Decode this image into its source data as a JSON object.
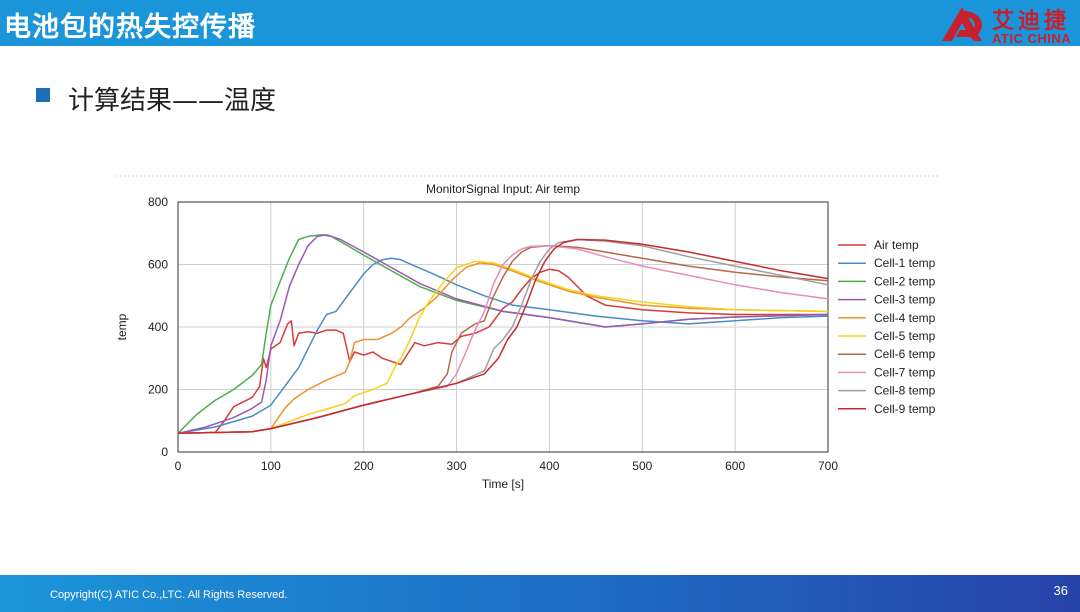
{
  "header": {
    "title": "电池包的热失控传播"
  },
  "logo": {
    "cn": "艾迪捷",
    "en": "ATIC CHINA",
    "brand_color": "#c8202e"
  },
  "bullet": {
    "text": "计算结果——温度"
  },
  "footer": {
    "copyright": "Copyright(C) ATIC Co.,LTC. All Rights Reserved.",
    "page": "36"
  },
  "chart_data": {
    "type": "line",
    "title": "MonitorSignal Input: Air temp",
    "xlabel": "Time [s]",
    "ylabel": "temp",
    "xlim": [
      0,
      700
    ],
    "ylim": [
      0,
      800
    ],
    "xticks": [
      0,
      100,
      200,
      300,
      400,
      500,
      600,
      700
    ],
    "yticks": [
      0,
      200,
      400,
      600,
      800
    ],
    "grid": true,
    "legend": "right",
    "series": [
      {
        "name": "Air temp",
        "color": "#d93a3a",
        "points": [
          [
            0,
            60
          ],
          [
            40,
            62
          ],
          [
            50,
            100
          ],
          [
            60,
            145
          ],
          [
            80,
            175
          ],
          [
            88,
            210
          ],
          [
            92,
            300
          ],
          [
            95,
            270
          ],
          [
            100,
            330
          ],
          [
            110,
            350
          ],
          [
            118,
            410
          ],
          [
            122,
            420
          ],
          [
            125,
            340
          ],
          [
            130,
            380
          ],
          [
            140,
            385
          ],
          [
            150,
            380
          ],
          [
            160,
            390
          ],
          [
            170,
            390
          ],
          [
            178,
            380
          ],
          [
            185,
            290
          ],
          [
            190,
            320
          ],
          [
            200,
            310
          ],
          [
            210,
            320
          ],
          [
            220,
            300
          ],
          [
            230,
            290
          ],
          [
            240,
            280
          ],
          [
            255,
            350
          ],
          [
            265,
            340
          ],
          [
            280,
            350
          ],
          [
            295,
            345
          ],
          [
            305,
            370
          ],
          [
            320,
            380
          ],
          [
            335,
            400
          ],
          [
            350,
            460
          ],
          [
            360,
            480
          ],
          [
            370,
            520
          ],
          [
            380,
            555
          ],
          [
            390,
            575
          ],
          [
            400,
            585
          ],
          [
            410,
            580
          ],
          [
            420,
            560
          ],
          [
            440,
            500
          ],
          [
            460,
            470
          ],
          [
            500,
            455
          ],
          [
            550,
            445
          ],
          [
            600,
            440
          ],
          [
            700,
            440
          ]
        ]
      },
      {
        "name": "Cell-1 temp",
        "color": "#4a8ac6",
        "points": [
          [
            0,
            60
          ],
          [
            40,
            80
          ],
          [
            80,
            115
          ],
          [
            100,
            150
          ],
          [
            120,
            230
          ],
          [
            130,
            270
          ],
          [
            140,
            330
          ],
          [
            150,
            390
          ],
          [
            160,
            440
          ],
          [
            170,
            450
          ],
          [
            180,
            490
          ],
          [
            190,
            530
          ],
          [
            200,
            570
          ],
          [
            210,
            600
          ],
          [
            220,
            615
          ],
          [
            230,
            620
          ],
          [
            240,
            615
          ],
          [
            255,
            595
          ],
          [
            275,
            570
          ],
          [
            300,
            535
          ],
          [
            330,
            500
          ],
          [
            360,
            470
          ],
          [
            400,
            455
          ],
          [
            450,
            435
          ],
          [
            500,
            420
          ],
          [
            550,
            410
          ],
          [
            600,
            420
          ],
          [
            650,
            430
          ],
          [
            700,
            435
          ]
        ]
      },
      {
        "name": "Cell-2 temp",
        "color": "#4caf50",
        "points": [
          [
            0,
            60
          ],
          [
            20,
            120
          ],
          [
            40,
            165
          ],
          [
            60,
            200
          ],
          [
            80,
            245
          ],
          [
            90,
            280
          ],
          [
            95,
            380
          ],
          [
            100,
            470
          ],
          [
            110,
            545
          ],
          [
            120,
            620
          ],
          [
            130,
            680
          ],
          [
            140,
            690
          ],
          [
            155,
            695
          ],
          [
            165,
            690
          ],
          [
            180,
            665
          ],
          [
            200,
            630
          ],
          [
            230,
            580
          ],
          [
            260,
            530
          ],
          [
            300,
            485
          ],
          [
            350,
            450
          ],
          [
            400,
            430
          ],
          [
            450,
            405
          ],
          [
            460,
            400
          ],
          [
            500,
            410
          ],
          [
            550,
            425
          ],
          [
            600,
            432
          ],
          [
            700,
            440
          ]
        ]
      },
      {
        "name": "Cell-3 temp",
        "color": "#9b59b6",
        "points": [
          [
            0,
            60
          ],
          [
            30,
            80
          ],
          [
            60,
            110
          ],
          [
            80,
            140
          ],
          [
            90,
            160
          ],
          [
            95,
            230
          ],
          [
            100,
            340
          ],
          [
            110,
            420
          ],
          [
            120,
            530
          ],
          [
            130,
            600
          ],
          [
            140,
            660
          ],
          [
            150,
            690
          ],
          [
            160,
            695
          ],
          [
            175,
            680
          ],
          [
            200,
            640
          ],
          [
            230,
            590
          ],
          [
            260,
            540
          ],
          [
            300,
            490
          ],
          [
            350,
            450
          ],
          [
            400,
            430
          ],
          [
            450,
            405
          ],
          [
            460,
            400
          ],
          [
            500,
            410
          ],
          [
            550,
            425
          ],
          [
            600,
            432
          ],
          [
            700,
            440
          ]
        ]
      },
      {
        "name": "Cell-4 temp",
        "color": "#f0922b",
        "points": [
          [
            0,
            60
          ],
          [
            80,
            65
          ],
          [
            100,
            75
          ],
          [
            115,
            140
          ],
          [
            125,
            170
          ],
          [
            140,
            200
          ],
          [
            160,
            230
          ],
          [
            180,
            255
          ],
          [
            185,
            290
          ],
          [
            190,
            350
          ],
          [
            200,
            360
          ],
          [
            215,
            360
          ],
          [
            230,
            380
          ],
          [
            240,
            400
          ],
          [
            250,
            430
          ],
          [
            265,
            460
          ],
          [
            280,
            500
          ],
          [
            295,
            550
          ],
          [
            310,
            590
          ],
          [
            325,
            605
          ],
          [
            340,
            600
          ],
          [
            360,
            580
          ],
          [
            390,
            545
          ],
          [
            420,
            515
          ],
          [
            450,
            495
          ],
          [
            500,
            470
          ],
          [
            550,
            460
          ],
          [
            600,
            455
          ],
          [
            700,
            450
          ]
        ]
      },
      {
        "name": "Cell-5 temp",
        "color": "#f5d31f",
        "points": [
          [
            0,
            60
          ],
          [
            80,
            65
          ],
          [
            100,
            75
          ],
          [
            140,
            120
          ],
          [
            180,
            155
          ],
          [
            190,
            180
          ],
          [
            210,
            200
          ],
          [
            225,
            220
          ],
          [
            235,
            280
          ],
          [
            240,
            300
          ],
          [
            250,
            360
          ],
          [
            260,
            430
          ],
          [
            270,
            480
          ],
          [
            285,
            540
          ],
          [
            300,
            590
          ],
          [
            320,
            610
          ],
          [
            340,
            605
          ],
          [
            360,
            585
          ],
          [
            390,
            550
          ],
          [
            420,
            520
          ],
          [
            450,
            500
          ],
          [
            500,
            480
          ],
          [
            550,
            465
          ],
          [
            600,
            455
          ],
          [
            700,
            450
          ]
        ]
      },
      {
        "name": "Cell-6 temp",
        "color": "#b5694c",
        "points": [
          [
            0,
            60
          ],
          [
            80,
            65
          ],
          [
            100,
            75
          ],
          [
            150,
            110
          ],
          [
            200,
            150
          ],
          [
            250,
            185
          ],
          [
            280,
            210
          ],
          [
            290,
            250
          ],
          [
            295,
            320
          ],
          [
            305,
            380
          ],
          [
            320,
            410
          ],
          [
            330,
            420
          ],
          [
            340,
            500
          ],
          [
            350,
            560
          ],
          [
            360,
            610
          ],
          [
            370,
            640
          ],
          [
            380,
            655
          ],
          [
            400,
            660
          ],
          [
            430,
            655
          ],
          [
            460,
            640
          ],
          [
            500,
            620
          ],
          [
            550,
            595
          ],
          [
            600,
            575
          ],
          [
            650,
            560
          ],
          [
            700,
            548
          ]
        ]
      },
      {
        "name": "Cell-7 temp",
        "color": "#e88bbd",
        "points": [
          [
            0,
            60
          ],
          [
            80,
            65
          ],
          [
            100,
            75
          ],
          [
            150,
            110
          ],
          [
            200,
            150
          ],
          [
            250,
            185
          ],
          [
            290,
            210
          ],
          [
            300,
            250
          ],
          [
            310,
            320
          ],
          [
            320,
            390
          ],
          [
            330,
            450
          ],
          [
            340,
            540
          ],
          [
            350,
            600
          ],
          [
            360,
            630
          ],
          [
            370,
            650
          ],
          [
            380,
            658
          ],
          [
            400,
            660
          ],
          [
            430,
            650
          ],
          [
            460,
            625
          ],
          [
            500,
            595
          ],
          [
            550,
            565
          ],
          [
            600,
            535
          ],
          [
            650,
            510
          ],
          [
            700,
            490
          ]
        ]
      },
      {
        "name": "Cell-8 temp",
        "color": "#9e9e9e",
        "points": [
          [
            0,
            60
          ],
          [
            80,
            65
          ],
          [
            100,
            75
          ],
          [
            150,
            110
          ],
          [
            200,
            150
          ],
          [
            250,
            185
          ],
          [
            300,
            220
          ],
          [
            330,
            260
          ],
          [
            340,
            330
          ],
          [
            350,
            360
          ],
          [
            360,
            400
          ],
          [
            370,
            470
          ],
          [
            380,
            550
          ],
          [
            390,
            610
          ],
          [
            400,
            650
          ],
          [
            410,
            670
          ],
          [
            430,
            680
          ],
          [
            460,
            675
          ],
          [
            500,
            660
          ],
          [
            550,
            625
          ],
          [
            600,
            595
          ],
          [
            650,
            565
          ],
          [
            700,
            535
          ]
        ]
      },
      {
        "name": "Cell-9 temp",
        "color": "#c9292e",
        "points": [
          [
            0,
            60
          ],
          [
            80,
            65
          ],
          [
            100,
            75
          ],
          [
            150,
            110
          ],
          [
            200,
            150
          ],
          [
            250,
            185
          ],
          [
            300,
            220
          ],
          [
            330,
            250
          ],
          [
            345,
            300
          ],
          [
            355,
            360
          ],
          [
            365,
            400
          ],
          [
            375,
            470
          ],
          [
            385,
            550
          ],
          [
            395,
            610
          ],
          [
            405,
            650
          ],
          [
            415,
            670
          ],
          [
            430,
            680
          ],
          [
            460,
            678
          ],
          [
            500,
            665
          ],
          [
            550,
            640
          ],
          [
            600,
            610
          ],
          [
            650,
            580
          ],
          [
            700,
            555
          ]
        ]
      }
    ]
  }
}
